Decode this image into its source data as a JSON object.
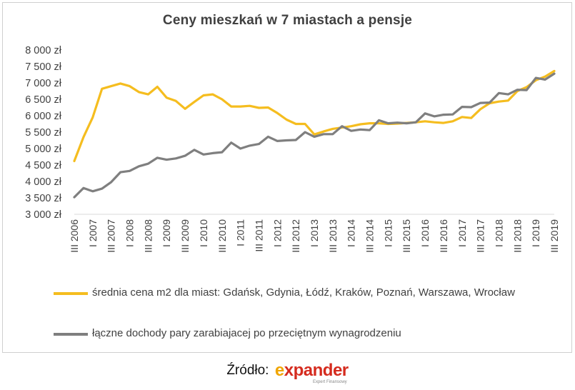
{
  "chart_data": {
    "type": "line",
    "title": "Ceny mieszkań w 7 miastach a pensje",
    "ylim": [
      3000,
      8000
    ],
    "y_ticks": [
      3000,
      3500,
      4000,
      4500,
      5000,
      5500,
      6000,
      6500,
      7000,
      7500,
      8000
    ],
    "y_tick_labels": [
      "3 000 zł",
      "3 500 zł",
      "4 000 zł",
      "4 500 zł",
      "5 000 zł",
      "5 500 zł",
      "6 000 zł",
      "6 500 zł",
      "7 000 zł",
      "7 500 zł",
      "8 000 zł"
    ],
    "x": [
      "III 2006",
      "IV 2006",
      "I 2007",
      "II 2007",
      "III 2007",
      "IV 2007",
      "I 2008",
      "II 2008",
      "III 2008",
      "IV 2008",
      "I 2009",
      "II 2009",
      "III 2009",
      "IV 2009",
      "I 2010",
      "II 2010",
      "III 2010",
      "IV 2010",
      "I 2011",
      "II 2011",
      "III 2011",
      "IV 2011",
      "I 2012",
      "II 2012",
      "III 2012",
      "IV 2012",
      "I 2013",
      "II 2013",
      "III 2013",
      "IV 2013",
      "I 2014",
      "II 2014",
      "III 2014",
      "IV 2014",
      "I 2015",
      "II 2015",
      "III 2015",
      "IV 2015",
      "I 2016",
      "II 2016",
      "III 2016",
      "IV 2016",
      "I 2017",
      "II 2017",
      "III 2017",
      "IV 2017",
      "I 2018",
      "II 2018",
      "III 2018",
      "IV 2018",
      "I 2019",
      "II 2019",
      "III 2019"
    ],
    "x_tick_labels": [
      "III 2006",
      "I 2007",
      "III 2007",
      "I 2008",
      "III 2008",
      "I 2009",
      "III 2009",
      "I 2010",
      "III 2010",
      "I 2011",
      "III 2011",
      "I 2012",
      "III 2012",
      "I 2013",
      "III 2013",
      "I 2014",
      "III 2014",
      "I 2015",
      "III 2015",
      "I 2016",
      "III 2016",
      "I 2017",
      "III 2017",
      "I 2018",
      "III 2018",
      "I 2019",
      "III 2019"
    ],
    "series": [
      {
        "name": "średnia cena m2 dla miast: Gdańsk, Gdynia, Łódź, Kraków, Poznań, Warszawa, Wrocław",
        "color": "#F5BD1F",
        "values": [
          4620,
          5350,
          5950,
          6820,
          6900,
          6980,
          6900,
          6720,
          6650,
          6880,
          6550,
          6450,
          6210,
          6420,
          6620,
          6650,
          6500,
          6280,
          6280,
          6300,
          6240,
          6250,
          6080,
          5880,
          5750,
          5750,
          5430,
          5520,
          5600,
          5640,
          5680,
          5740,
          5770,
          5770,
          5750,
          5760,
          5780,
          5800,
          5830,
          5800,
          5780,
          5830,
          5960,
          5930,
          6200,
          6380,
          6430,
          6460,
          6750,
          6870,
          7080,
          7190,
          7360
        ]
      },
      {
        "name": "łączne dochody pary zarabiajacej po przeciętnym wynagrodzeniu",
        "color": "#7F7F7F",
        "values": [
          3520,
          3800,
          3700,
          3780,
          3980,
          4280,
          4320,
          4460,
          4540,
          4720,
          4660,
          4700,
          4780,
          4960,
          4820,
          4860,
          4890,
          5180,
          5000,
          5090,
          5140,
          5360,
          5230,
          5250,
          5260,
          5500,
          5360,
          5440,
          5440,
          5680,
          5540,
          5580,
          5560,
          5860,
          5770,
          5790,
          5770,
          5800,
          6070,
          5980,
          6030,
          6040,
          6270,
          6260,
          6390,
          6400,
          6690,
          6650,
          6790,
          6780,
          7150,
          7100,
          7280
        ]
      }
    ],
    "legend_position": "bottom",
    "grid": false
  },
  "footer": {
    "source_label": "Źródło:",
    "logo_text": "expander",
    "logo_subtext": "Expert Finansowy"
  }
}
